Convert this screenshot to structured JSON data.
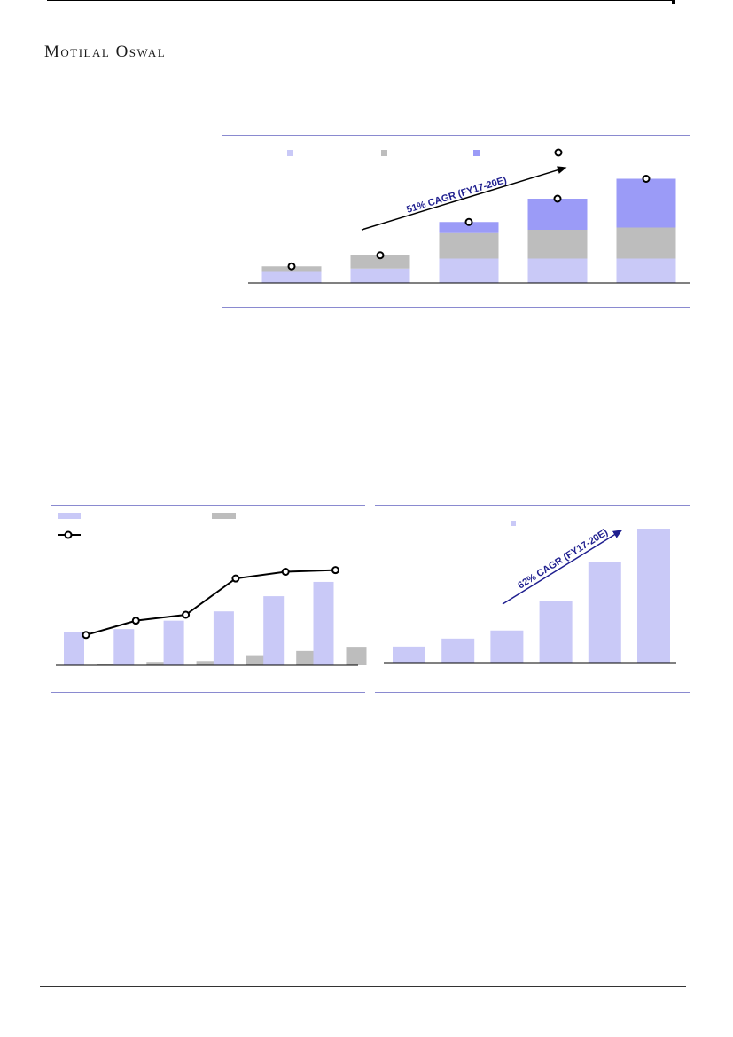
{
  "header": {
    "brand": "Motilal Oswal"
  },
  "colors": {
    "series_light": "#c9c9f7",
    "series_gray": "#bdbdbd",
    "series_dark": "#9b9bf7",
    "line": "#000000",
    "arrow": "#1f1f8f",
    "rule": "#8a8ad0"
  },
  "chart_data": [
    {
      "type": "bar",
      "stacked": true,
      "categories": [
        "",
        "",
        "",
        "",
        ""
      ],
      "series": [
        {
          "color": "#c9c9f7",
          "values": [
            10,
            13,
            22,
            22,
            22
          ]
        },
        {
          "color": "#bdbdbd",
          "values": [
            5,
            12,
            23,
            26,
            28
          ]
        },
        {
          "color": "#9b9bf7",
          "values": [
            0,
            0,
            10,
            28,
            44
          ]
        }
      ],
      "line": {
        "marker": "circle",
        "values": [
          15,
          25,
          55,
          76,
          94
        ]
      },
      "annotation": "51% CAGR (FY17-20E)",
      "ylim": [
        0,
        100
      ],
      "legend": "top"
    },
    {
      "type": "bar",
      "categories": [
        "",
        "",
        "",
        "",
        "",
        ""
      ],
      "series": [
        {
          "color": "#c9c9f7",
          "values": [
            39,
            43,
            53,
            64,
            82,
            99
          ]
        },
        {
          "color": "#bdbdbd",
          "values": [
            2,
            4,
            5,
            12,
            17,
            22
          ]
        }
      ],
      "line": {
        "marker": "circle",
        "values": [
          36,
          53,
          60,
          103,
          111,
          113
        ]
      },
      "ylim": [
        0,
        120
      ],
      "legend": "top-left"
    },
    {
      "type": "bar",
      "categories": [
        "",
        "",
        "",
        "",
        "",
        ""
      ],
      "series": [
        {
          "color": "#c9c9f7",
          "values": [
            12,
            18,
            24,
            46,
            75,
            100
          ]
        }
      ],
      "annotation": "62% CAGR (FY17-20E)",
      "ylim": [
        0,
        100
      ],
      "legend": "top"
    }
  ]
}
